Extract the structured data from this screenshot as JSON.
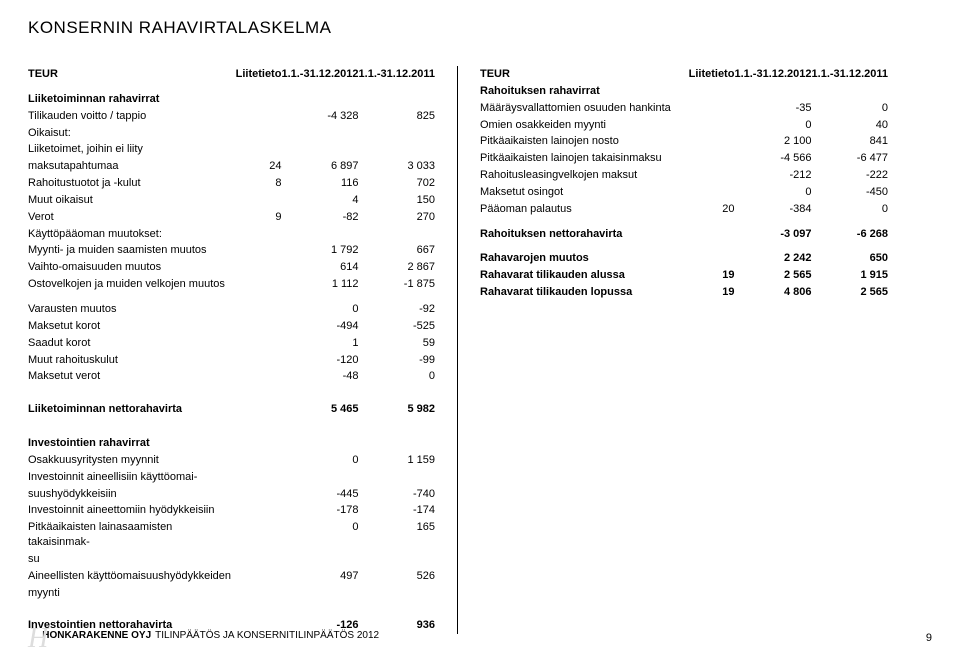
{
  "title": "KONSERNIN RAHAVIRTALASKELMA",
  "headers": {
    "currency": "TEUR",
    "note": "Liitetieto",
    "period1": "1.1.-31.12.2012",
    "period2": "1.1.-31.12.2011"
  },
  "left": {
    "s1_title": "Liiketoiminnan rahavirrat",
    "rows_s1": [
      {
        "label": "Tilikauden voitto / tappio",
        "note": "",
        "v1": "-4 328",
        "v2": "825"
      },
      {
        "label": "Oikaisut:",
        "note": "",
        "v1": "",
        "v2": ""
      },
      {
        "label": "Liiketoimet, joihin ei liity",
        "note": "",
        "v1": "",
        "v2": ""
      },
      {
        "label": "maksutapahtumaa",
        "note": "24",
        "v1": "6 897",
        "v2": "3 033"
      },
      {
        "label": "Rahoitustuotot ja -kulut",
        "note": "8",
        "v1": "116",
        "v2": "702"
      },
      {
        "label": "Muut oikaisut",
        "note": "",
        "v1": "4",
        "v2": "150"
      },
      {
        "label": "Verot",
        "note": "9",
        "v1": "-82",
        "v2": "270"
      },
      {
        "label": "Käyttöpääoman muutokset:",
        "note": "",
        "v1": "",
        "v2": ""
      },
      {
        "label": "Myynti- ja muiden saamisten muutos",
        "note": "",
        "v1": "1 792",
        "v2": "667"
      },
      {
        "label": "Vaihto-omaisuuden muutos",
        "note": "",
        "v1": "614",
        "v2": "2 867"
      },
      {
        "label": "Ostovelkojen ja muiden velkojen muutos",
        "note": "",
        "v1": "1 112",
        "v2": "-1 875"
      }
    ],
    "rows_s2": [
      {
        "label": "Varausten muutos",
        "note": "",
        "v1": "0",
        "v2": "-92"
      },
      {
        "label": "Maksetut korot",
        "note": "",
        "v1": "-494",
        "v2": "-525"
      },
      {
        "label": "Saadut korot",
        "note": "",
        "v1": "1",
        "v2": "59"
      },
      {
        "label": "Muut rahoituskulut",
        "note": "",
        "v1": "-120",
        "v2": "-99"
      },
      {
        "label": "Maksetut verot",
        "note": "",
        "v1": "-48",
        "v2": "0"
      }
    ],
    "net_op": {
      "label": "Liiketoiminnan nettorahavirta",
      "v1": "5 465",
      "v2": "5 982"
    },
    "s3_title": "Investointien rahavirrat",
    "rows_s3": [
      {
        "label": "Osakkuusyritysten myynnit",
        "v1": "0",
        "v2": "1 159"
      },
      {
        "label": "Investoinnit aineellisiin käyttöomai-",
        "v1": "",
        "v2": ""
      },
      {
        "label": "suushyödykkeisiin",
        "v1": "-445",
        "v2": "-740"
      },
      {
        "label": "Investoinnit aineettomiin hyödykkeisiin",
        "v1": "-178",
        "v2": "-174"
      },
      {
        "label": "Pitkäaikaisten lainasaamisten takaisinmak-",
        "v1": "0",
        "v2": "165"
      },
      {
        "label": "su",
        "v1": "",
        "v2": ""
      },
      {
        "label": "Aineellisten käyttöomaisuushyödykkeiden",
        "v1": "497",
        "v2": "526"
      },
      {
        "label": "myynti",
        "v1": "",
        "v2": ""
      }
    ],
    "net_inv": {
      "label": "Investointien nettorahavirta",
      "v1": "-126",
      "v2": "936"
    }
  },
  "right": {
    "s1_title": "Rahoituksen rahavirrat",
    "rows_s1": [
      {
        "label": "Määräysvallattomien osuuden hankinta",
        "note": "",
        "v1": "-35",
        "v2": "0"
      },
      {
        "label": "Omien osakkeiden myynti",
        "note": "",
        "v1": "0",
        "v2": "40"
      },
      {
        "label": "Pitkäaikaisten lainojen nosto",
        "note": "",
        "v1": "2 100",
        "v2": "841"
      },
      {
        "label": "Pitkäaikaisten lainojen takaisinmaksu",
        "note": "",
        "v1": "-4 566",
        "v2": "-6 477"
      },
      {
        "label": "Rahoitusleasingvelkojen maksut",
        "note": "",
        "v1": "-212",
        "v2": "-222"
      },
      {
        "label": "Maksetut osingot",
        "note": "",
        "v1": "0",
        "v2": "-450"
      },
      {
        "label": "Pääoman palautus",
        "note": "20",
        "v1": "-384",
        "v2": "0"
      }
    ],
    "net_fin": {
      "label": "Rahoituksen nettorahavirta",
      "v1": "-3 097",
      "v2": "-6 268"
    },
    "rows_s2": [
      {
        "label": "Rahavarojen muutos",
        "note": "",
        "v1": "2 242",
        "v2": "650",
        "bold": true
      },
      {
        "label": "Rahavarat tilikauden alussa",
        "note": "19",
        "v1": "2 565",
        "v2": "1 915",
        "bold": true
      },
      {
        "label": "Rahavarat tilikauden lopussa",
        "note": "19",
        "v1": "4 806",
        "v2": "2 565",
        "bold": true
      }
    ]
  },
  "footer": {
    "company": "HONKARAKENNE OYJ",
    "report": "TILINPÄÄTÖS JA KONSERNITILINPÄÄTÖS 2012",
    "page": "9"
  }
}
